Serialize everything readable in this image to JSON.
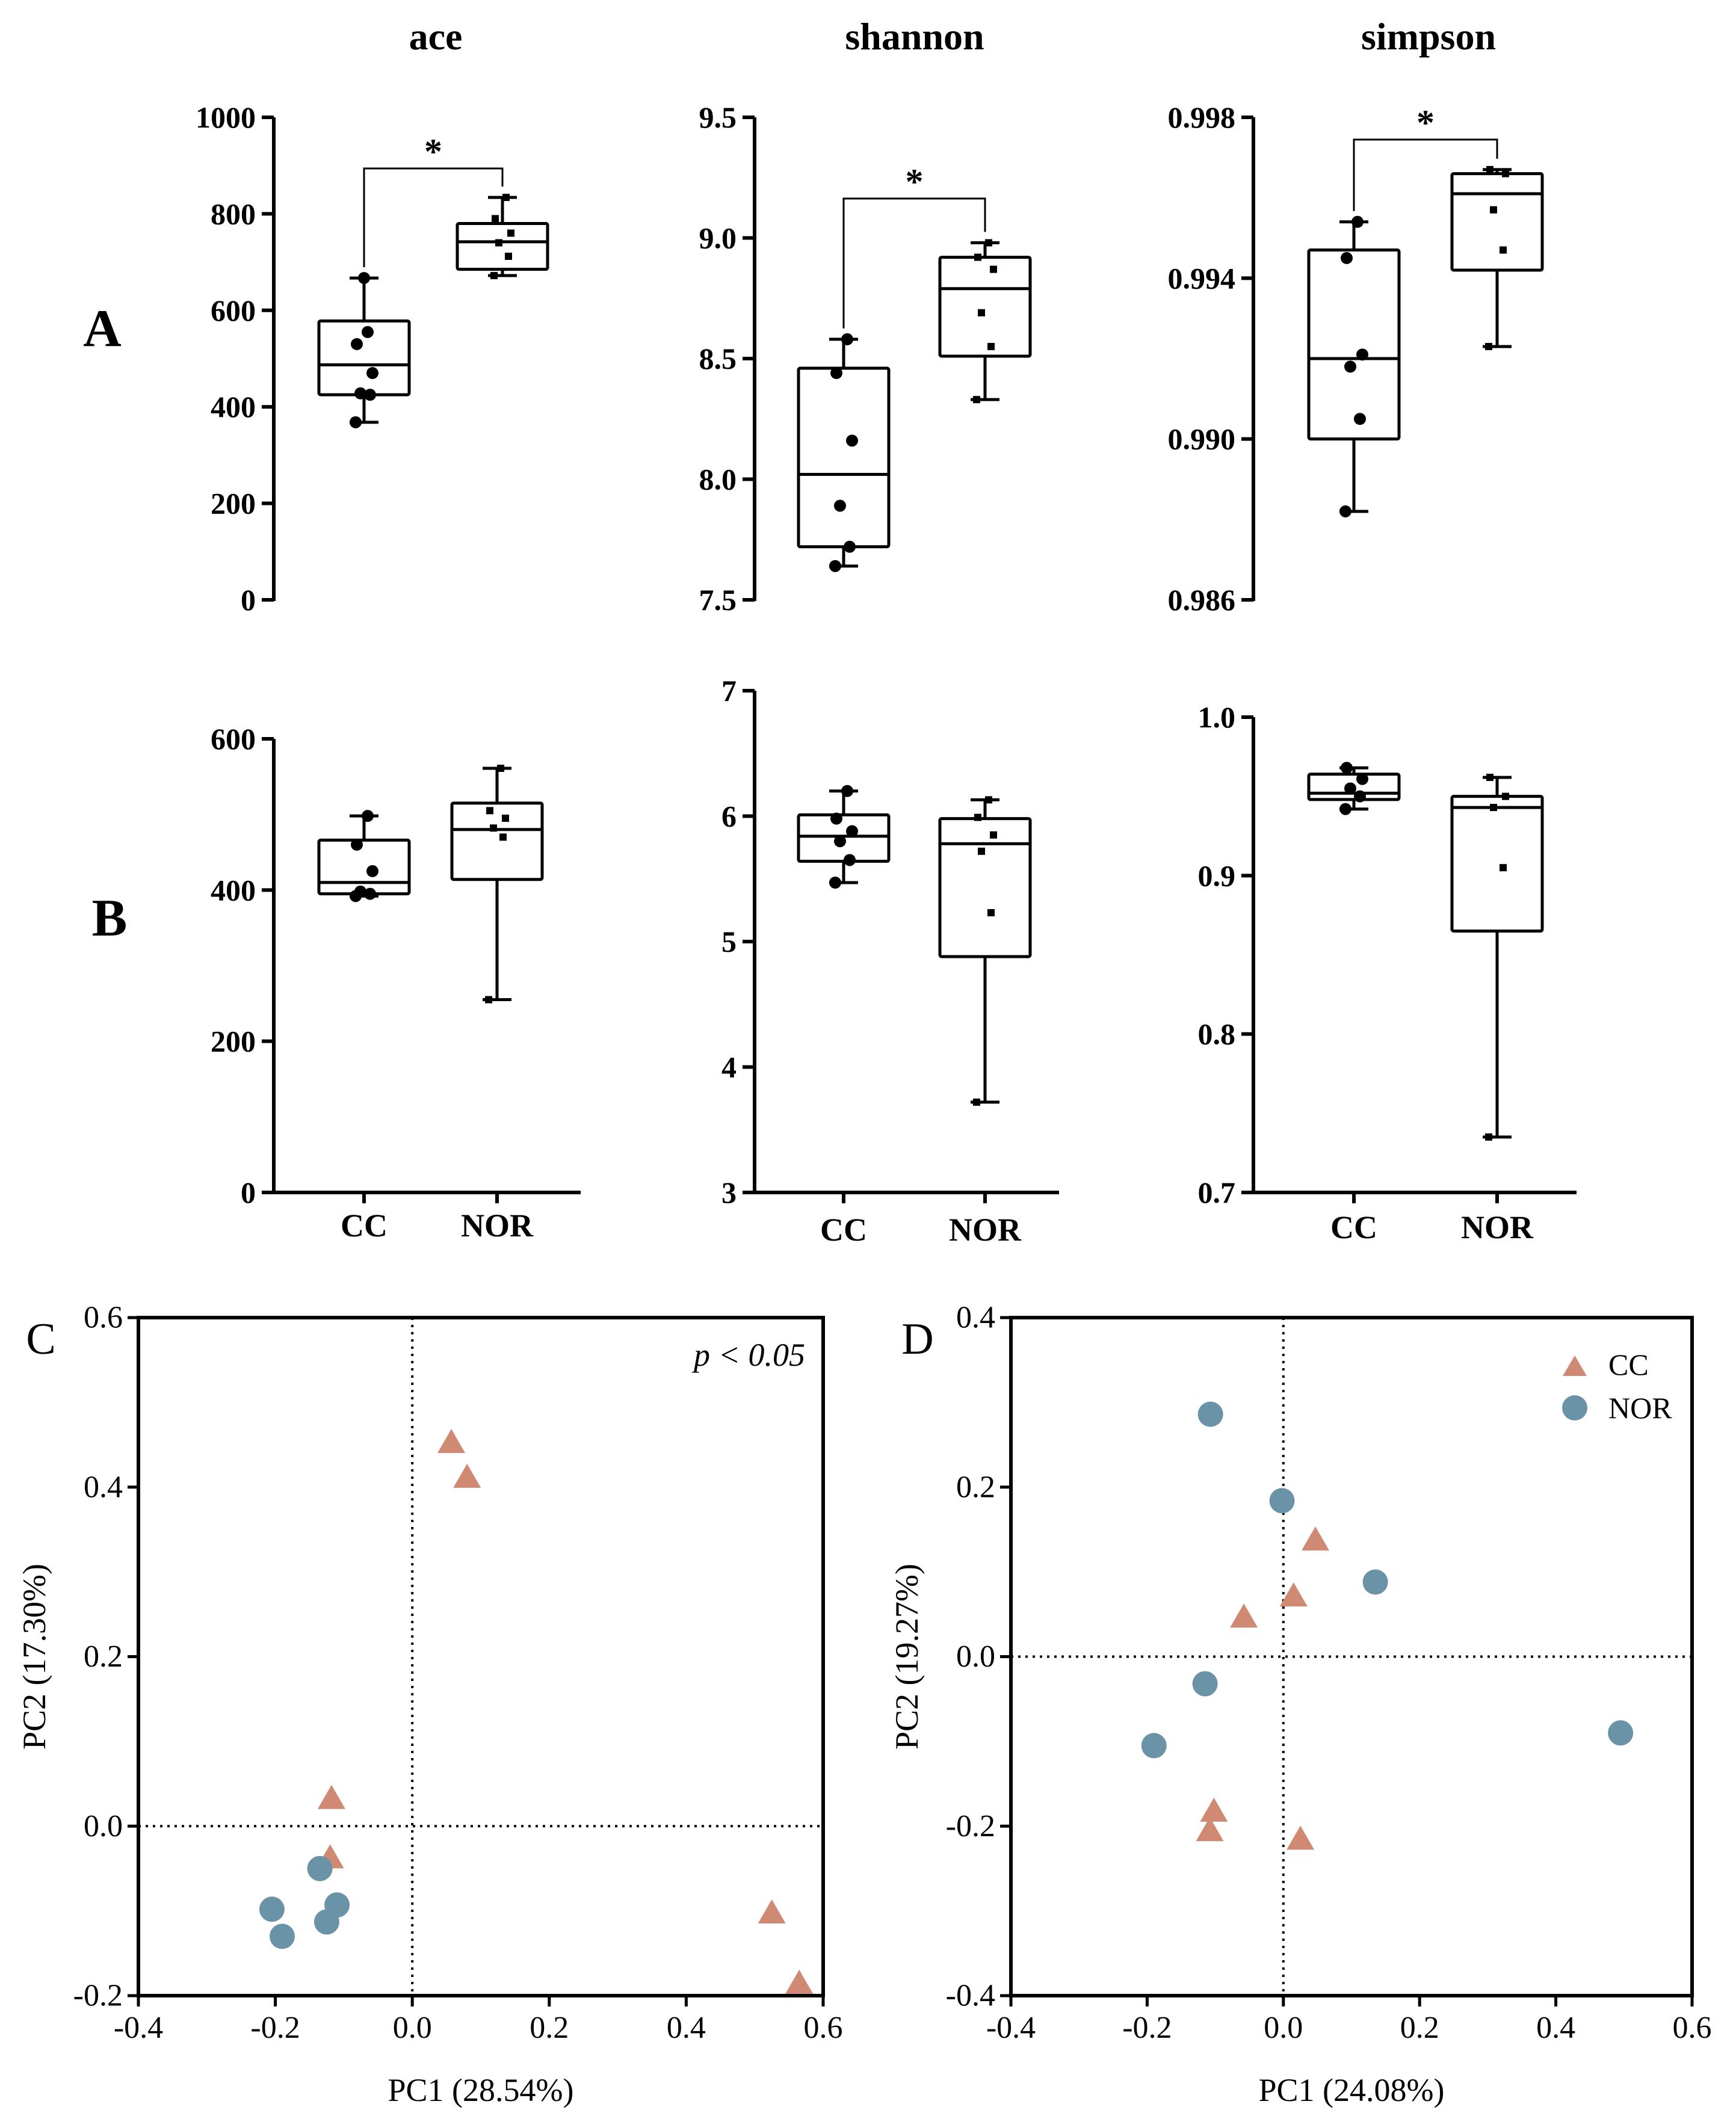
{
  "titles": {
    "col1": "ace",
    "col2": "shannon",
    "col3": "simpson"
  },
  "panel_labels": {
    "A": "A",
    "B": "B",
    "C": "C",
    "D": "D"
  },
  "legend": {
    "cc": "CC",
    "nor": "NOR"
  },
  "colors": {
    "cc": "#d08a74",
    "nor": "#6b93a8"
  },
  "chart_data": [
    {
      "id": "A-ace",
      "type": "box",
      "title": "ace",
      "row": "A",
      "categories": [
        "CC",
        "NOR"
      ],
      "ylim": [
        0,
        1000
      ],
      "yticks": [
        0,
        200,
        400,
        600,
        800,
        1000
      ],
      "tick_decimals": 0,
      "boxes": [
        {
          "name": "CC",
          "min": 368,
          "q1": 425,
          "median": 487,
          "q3": 578,
          "max": 667,
          "points": [
            368,
            425,
            428,
            470,
            530,
            555,
            667
          ]
        },
        {
          "name": "NOR",
          "min": 672,
          "q1": 685,
          "median": 742,
          "q3": 780,
          "max": 834,
          "points": [
            672,
            712,
            740,
            760,
            790,
            834
          ]
        }
      ],
      "significance": "*"
    },
    {
      "id": "A-shannon",
      "type": "box",
      "title": "shannon",
      "row": "A",
      "categories": [
        "CC",
        "NOR"
      ],
      "ylim": [
        7.5,
        9.5
      ],
      "yticks": [
        7.5,
        8.0,
        8.5,
        9.0,
        9.5
      ],
      "tick_decimals": 1,
      "boxes": [
        {
          "name": "CC",
          "min": 7.64,
          "q1": 7.72,
          "median": 8.02,
          "q3": 8.46,
          "max": 8.58,
          "points": [
            7.64,
            7.72,
            7.89,
            8.16,
            8.44,
            8.58
          ]
        },
        {
          "name": "NOR",
          "min": 8.33,
          "q1": 8.51,
          "median": 8.79,
          "q3": 8.92,
          "max": 8.98,
          "points": [
            8.33,
            8.55,
            8.69,
            8.87,
            8.92,
            8.98
          ]
        }
      ],
      "significance": "*"
    },
    {
      "id": "A-simpson",
      "type": "box",
      "title": "simpson",
      "row": "A",
      "categories": [
        "CC",
        "NOR"
      ],
      "ylim": [
        0.986,
        0.998
      ],
      "yticks": [
        0.986,
        0.99,
        0.994,
        0.998
      ],
      "tick_decimals": 3,
      "boxes": [
        {
          "name": "CC",
          "min": 0.9882,
          "q1": 0.99,
          "median": 0.992,
          "q3": 0.9947,
          "max": 0.9954,
          "points": [
            0.9882,
            0.9905,
            0.9918,
            0.9921,
            0.9945,
            0.9954
          ]
        },
        {
          "name": "NOR",
          "min": 0.9923,
          "q1": 0.9942,
          "median": 0.9961,
          "q3": 0.9966,
          "max": 0.9967,
          "points": [
            0.9923,
            0.9947,
            0.9957,
            0.9966,
            0.9967
          ]
        }
      ],
      "significance": "*"
    },
    {
      "id": "B-ace",
      "type": "box",
      "title": "",
      "row": "B",
      "categories": [
        "CC",
        "NOR"
      ],
      "ylim": [
        0,
        600
      ],
      "yticks": [
        0,
        200,
        400,
        600
      ],
      "tick_decimals": 0,
      "boxes": [
        {
          "name": "CC",
          "min": 392,
          "q1": 395,
          "median": 410,
          "q3": 466,
          "max": 498,
          "points": [
            392,
            395,
            398,
            425,
            460,
            498
          ]
        },
        {
          "name": "NOR",
          "min": 255,
          "q1": 414,
          "median": 480,
          "q3": 515,
          "max": 561,
          "points": [
            255,
            470,
            482,
            495,
            505,
            561
          ]
        }
      ],
      "significance": ""
    },
    {
      "id": "B-shannon",
      "type": "box",
      "title": "",
      "row": "B",
      "categories": [
        "CC",
        "NOR"
      ],
      "ylim": [
        3,
        7
      ],
      "yticks": [
        3,
        4,
        5,
        6,
        7
      ],
      "tick_decimals": 0,
      "boxes": [
        {
          "name": "CC",
          "min": 5.47,
          "q1": 5.64,
          "median": 5.84,
          "q3": 6.01,
          "max": 6.2,
          "points": [
            5.47,
            5.65,
            5.8,
            5.88,
            5.98,
            6.2
          ]
        },
        {
          "name": "NOR",
          "min": 3.72,
          "q1": 4.88,
          "median": 5.78,
          "q3": 5.98,
          "max": 6.13,
          "points": [
            3.72,
            5.23,
            5.72,
            5.85,
            5.99,
            6.13
          ]
        }
      ],
      "significance": ""
    },
    {
      "id": "B-simpson",
      "type": "box",
      "title": "",
      "row": "B",
      "categories": [
        "CC",
        "NOR"
      ],
      "ylim": [
        0.7,
        1.0
      ],
      "yticks": [
        0.7,
        0.8,
        0.9,
        1.0
      ],
      "tick_decimals": 1,
      "boxes": [
        {
          "name": "CC",
          "min": 0.942,
          "q1": 0.948,
          "median": 0.952,
          "q3": 0.964,
          "max": 0.968,
          "points": [
            0.942,
            0.95,
            0.955,
            0.961,
            0.968
          ]
        },
        {
          "name": "NOR",
          "min": 0.735,
          "q1": 0.865,
          "median": 0.943,
          "q3": 0.95,
          "max": 0.962,
          "points": [
            0.735,
            0.905,
            0.943,
            0.95,
            0.962
          ]
        }
      ],
      "significance": ""
    },
    {
      "id": "C",
      "type": "scatter",
      "panel": "C",
      "xlabel": "PC1 (28.54%)",
      "ylabel": "PC2 (17.30%)",
      "xlim": [
        -0.4,
        0.6
      ],
      "ylim": [
        -0.2,
        0.6
      ],
      "xticks": [
        -0.4,
        -0.2,
        0.0,
        0.2,
        0.4,
        0.6
      ],
      "yticks": [
        -0.2,
        0.0,
        0.2,
        0.4,
        0.6
      ],
      "annotation": "p < 0.05",
      "series": [
        {
          "name": "CC",
          "marker": "triangle",
          "points": [
            [
              0.057,
              0.453
            ],
            [
              0.08,
              0.412
            ],
            [
              -0.118,
              0.033
            ],
            [
              -0.12,
              -0.037
            ],
            [
              0.525,
              -0.102
            ],
            [
              0.565,
              -0.185
            ]
          ]
        },
        {
          "name": "NOR",
          "marker": "circle",
          "points": [
            [
              -0.135,
              -0.05
            ],
            [
              -0.11,
              -0.093
            ],
            [
              -0.205,
              -0.098
            ],
            [
              -0.125,
              -0.113
            ],
            [
              -0.19,
              -0.13
            ]
          ]
        }
      ]
    },
    {
      "id": "D",
      "type": "scatter",
      "panel": "D",
      "xlabel": "PC1 (24.08%)",
      "ylabel": "PC2 (19.27%)",
      "xlim": [
        -0.4,
        0.6
      ],
      "ylim": [
        -0.4,
        0.4
      ],
      "xticks": [
        -0.4,
        -0.2,
        0.0,
        0.2,
        0.4,
        0.6
      ],
      "yticks": [
        -0.4,
        -0.2,
        0.0,
        0.2,
        0.4
      ],
      "annotation": "",
      "series": [
        {
          "name": "CC",
          "marker": "triangle",
          "points": [
            [
              0.047,
              0.138
            ],
            [
              0.015,
              0.072
            ],
            [
              -0.058,
              0.047
            ],
            [
              -0.102,
              -0.182
            ],
            [
              -0.108,
              -0.205
            ],
            [
              0.025,
              -0.215
            ]
          ]
        },
        {
          "name": "NOR",
          "marker": "circle",
          "points": [
            [
              -0.107,
              0.286
            ],
            [
              -0.002,
              0.184
            ],
            [
              0.135,
              0.088
            ],
            [
              -0.115,
              -0.032
            ],
            [
              -0.19,
              -0.105
            ],
            [
              0.495,
              -0.09
            ]
          ]
        }
      ]
    }
  ]
}
